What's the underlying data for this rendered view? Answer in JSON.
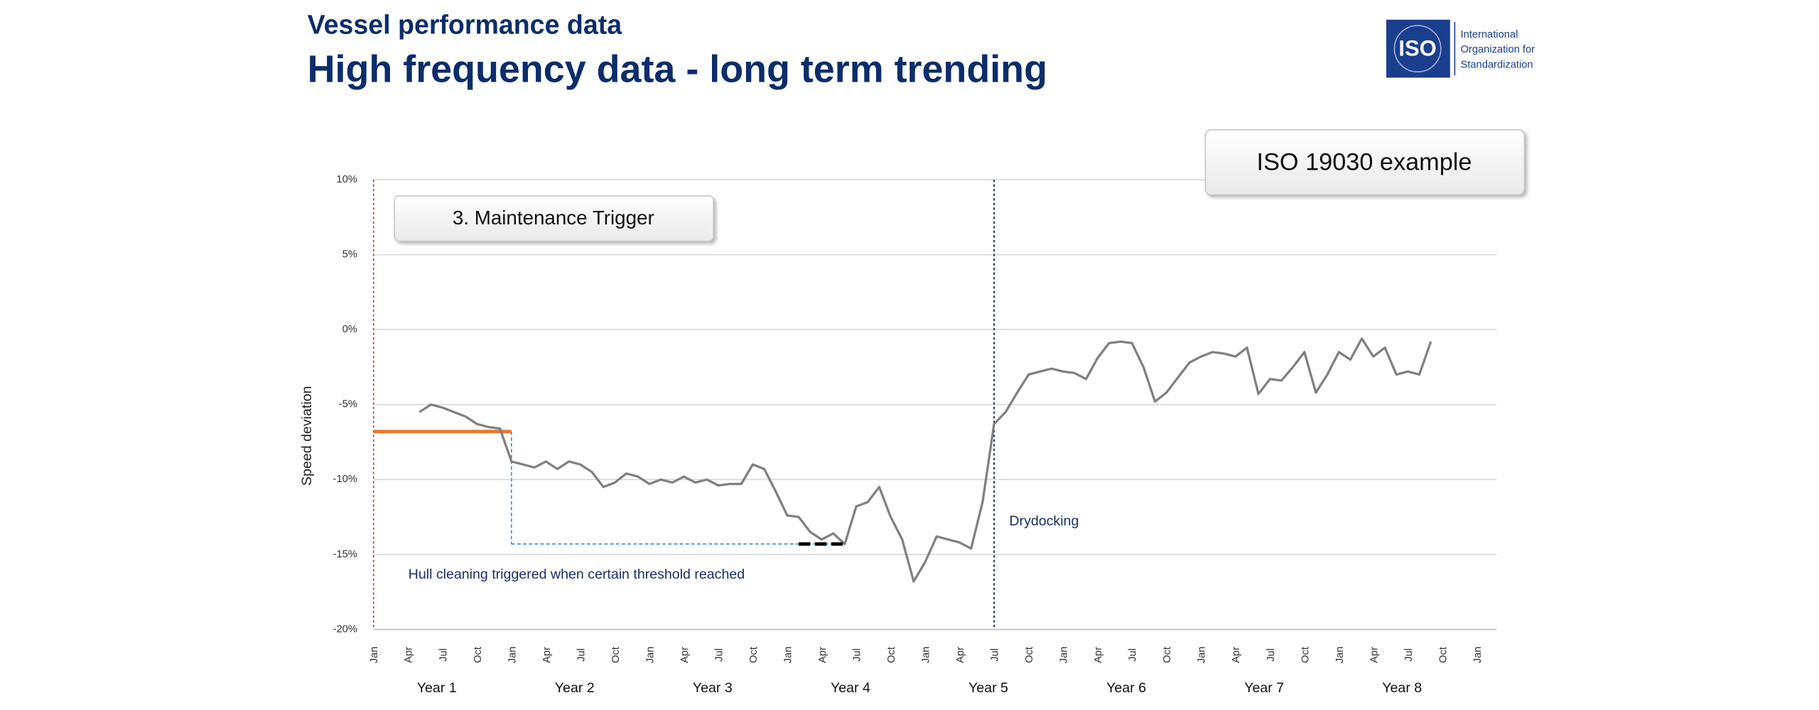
{
  "header": {
    "title": "Vessel performance data",
    "subtitle": "High frequency data - long term trending"
  },
  "logo": {
    "mark": "ISO",
    "lines": [
      "International",
      "Organization for",
      "Standardization"
    ]
  },
  "chart_data": {
    "type": "line",
    "y_label": "Speed deviation",
    "badge": "ISO 19030 example",
    "panel_title": "3. Maintenance Trigger",
    "annotations": {
      "cleaning": "Hull cleaning triggered when certain threshold reached",
      "drydock": "Drydocking"
    },
    "categories": [
      "Jan",
      null,
      null,
      "Apr",
      null,
      null,
      "Jul",
      null,
      null,
      "Oct",
      null,
      null,
      "Jan",
      null,
      null,
      "Apr",
      null,
      null,
      "Jul",
      null,
      null,
      "Oct",
      null,
      null,
      "Jan",
      null,
      null,
      "Apr",
      null,
      null,
      "Jul",
      null,
      null,
      "Oct",
      null,
      null,
      "Jan",
      null,
      null,
      "Apr",
      null,
      null,
      "Jul",
      null,
      null,
      "Oct",
      null,
      null,
      "Jan",
      null,
      null,
      "Apr",
      null,
      null,
      "Jul",
      null,
      null,
      "Oct",
      null,
      null,
      "Jan",
      null,
      null,
      "Apr",
      null,
      null,
      "Jul",
      null,
      null,
      "Oct",
      null,
      null,
      "Jan",
      null,
      null,
      "Apr",
      null,
      null,
      "Jul",
      null,
      null,
      "Oct",
      null,
      null,
      "Jan",
      null,
      null,
      "Apr",
      null,
      null,
      "Jul",
      null,
      null,
      "Oct",
      null,
      null,
      "Jan"
    ],
    "year_labels": [
      "Year 1",
      "Year 2",
      "Year 3",
      "Year 4",
      "Year 5",
      "Year 6",
      "Year 7",
      "Year 8"
    ],
    "series": [
      {
        "name": "Speed deviation",
        "color": "#808080",
        "values": [
          null,
          null,
          null,
          null,
          -5.5,
          -5.0,
          -5.2,
          -5.5,
          -5.8,
          -6.3,
          -6.5,
          -6.6,
          -8.8,
          -9.0,
          -9.2,
          -8.8,
          -9.3,
          -8.8,
          -9.0,
          -9.5,
          -10.5,
          -10.2,
          -9.6,
          -9.8,
          -10.3,
          -10.0,
          -10.2,
          -9.8,
          -10.2,
          -10.0,
          -10.4,
          -10.3,
          -10.3,
          -9.0,
          -9.3,
          -10.8,
          -12.4,
          -12.5,
          -13.5,
          -14.0,
          -13.6,
          -14.3,
          -11.8,
          -11.5,
          -10.5,
          -12.5,
          -14.0,
          -16.8,
          -15.5,
          -13.8,
          -14.0,
          -14.2,
          -14.6,
          -11.5,
          -6.3,
          -5.5,
          -4.2,
          -3.0,
          -2.8,
          -2.6,
          -2.8,
          -2.9,
          -3.3,
          -1.9,
          -0.9,
          -0.8,
          -0.9,
          -2.5,
          -4.8,
          -4.2,
          -3.2,
          -2.2,
          -1.8,
          -1.5,
          -1.6,
          -1.8,
          -1.2,
          -4.3,
          -3.3,
          -3.4,
          -2.5,
          -1.5,
          -4.2,
          -3.0,
          -1.5,
          -2.0,
          -0.6,
          -1.8,
          -1.2,
          -3.0,
          -2.8,
          -3.0,
          -0.8,
          null,
          null,
          null,
          null
        ]
      }
    ],
    "threshold": {
      "value": -6.8,
      "color": "#e8782a"
    },
    "cleaning_level": -14.3,
    "ylim": [
      -20,
      10
    ],
    "yticks": [
      {
        "value": -20,
        "label": "-20%"
      },
      {
        "value": -15,
        "label": "-15%"
      },
      {
        "value": -10,
        "label": "-10%"
      },
      {
        "value": -5,
        "label": "-5%"
      },
      {
        "value": 0,
        "label": "0%"
      },
      {
        "value": 5,
        "label": "5%"
      },
      {
        "value": 10,
        "label": "10%"
      }
    ],
    "grid": true
  }
}
